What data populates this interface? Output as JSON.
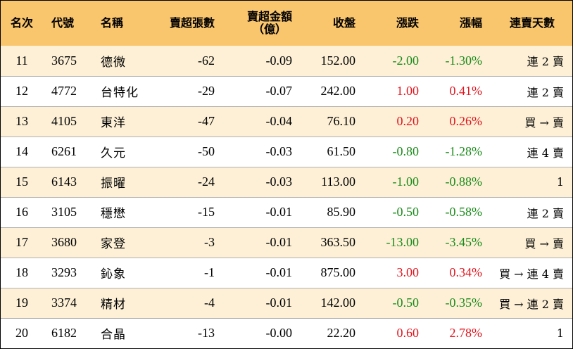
{
  "header": {
    "rank": "名次",
    "code": "代號",
    "name": "名稱",
    "sell_lots": "賣超張數",
    "sell_amount_line1": "賣超金額",
    "sell_amount_line2": "（億）",
    "close": "收盤",
    "change": "漲跌",
    "change_pct": "漲幅",
    "streak": "連賣天數"
  },
  "rows": [
    {
      "rank": "11",
      "code": "3675",
      "name": "德微",
      "lots": "-62",
      "amount": "-0.09",
      "close": "152.00",
      "change": "-2.00",
      "pct": "-1.30%",
      "dir": "down",
      "streak": "連 2 賣"
    },
    {
      "rank": "12",
      "code": "4772",
      "name": "台特化",
      "lots": "-29",
      "amount": "-0.07",
      "close": "242.00",
      "change": "1.00",
      "pct": "0.41%",
      "dir": "up",
      "streak": "連 2 賣"
    },
    {
      "rank": "13",
      "code": "4105",
      "name": "東洋",
      "lots": "-47",
      "amount": "-0.04",
      "close": "76.10",
      "change": "0.20",
      "pct": "0.26%",
      "dir": "up",
      "streak": "買 → 賣"
    },
    {
      "rank": "14",
      "code": "6261",
      "name": "久元",
      "lots": "-50",
      "amount": "-0.03",
      "close": "61.50",
      "change": "-0.80",
      "pct": "-1.28%",
      "dir": "down",
      "streak": "連 4 賣"
    },
    {
      "rank": "15",
      "code": "6143",
      "name": "振曜",
      "lots": "-24",
      "amount": "-0.03",
      "close": "113.00",
      "change": "-1.00",
      "pct": "-0.88%",
      "dir": "down",
      "streak": "1"
    },
    {
      "rank": "16",
      "code": "3105",
      "name": "穩懋",
      "lots": "-15",
      "amount": "-0.01",
      "close": "85.90",
      "change": "-0.50",
      "pct": "-0.58%",
      "dir": "down",
      "streak": "連 2 賣"
    },
    {
      "rank": "17",
      "code": "3680",
      "name": "家登",
      "lots": "-3",
      "amount": "-0.01",
      "close": "363.50",
      "change": "-13.00",
      "pct": "-3.45%",
      "dir": "down",
      "streak": "買 → 賣"
    },
    {
      "rank": "18",
      "code": "3293",
      "name": "鈊象",
      "lots": "-1",
      "amount": "-0.01",
      "close": "875.00",
      "change": "3.00",
      "pct": "0.34%",
      "dir": "up",
      "streak": "買 → 連 4 賣"
    },
    {
      "rank": "19",
      "code": "3374",
      "name": "精材",
      "lots": "-4",
      "amount": "-0.01",
      "close": "142.00",
      "change": "-0.50",
      "pct": "-0.35%",
      "dir": "down",
      "streak": "買 → 連 2 賣"
    },
    {
      "rank": "20",
      "code": "6182",
      "name": "合晶",
      "lots": "-13",
      "amount": "-0.00",
      "close": "22.20",
      "change": "0.60",
      "pct": "2.78%",
      "dir": "up",
      "streak": "1"
    }
  ],
  "colors": {
    "header_bg": "#f9c56d",
    "odd_row_bg": "#fdf0d6",
    "even_row_bg": "#ffffff",
    "up": "#e0141e",
    "down": "#1a8a1a"
  }
}
